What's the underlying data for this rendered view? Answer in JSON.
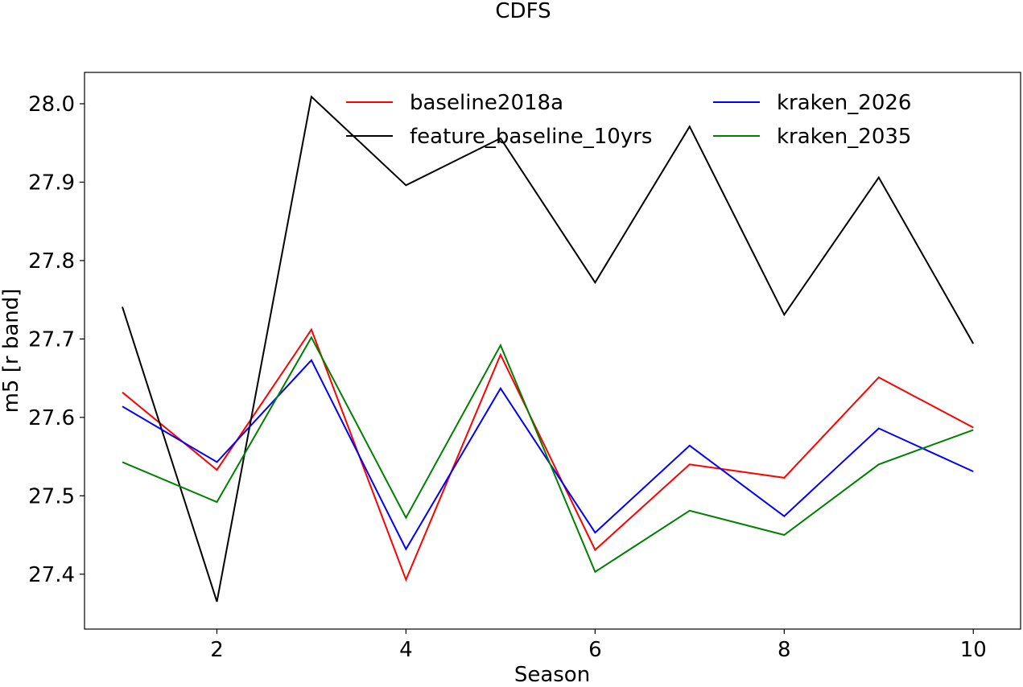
{
  "chart_data": {
    "type": "line",
    "title": "CDFS",
    "xlabel": "Season",
    "ylabel": "m5 [r band]",
    "xlim": [
      0.6,
      10.5
    ],
    "ylim": [
      27.33,
      28.04
    ],
    "x_ticks": [
      2,
      4,
      6,
      8,
      10
    ],
    "y_ticks": [
      27.4,
      27.5,
      27.6,
      27.7,
      27.8,
      27.9,
      28.0
    ],
    "x_tick_labels": [
      "2",
      "4",
      "6",
      "8",
      "10"
    ],
    "y_tick_labels": [
      "27.4",
      "27.5",
      "27.6",
      "27.7",
      "27.8",
      "27.9",
      "28.0"
    ],
    "legend_position": "top-center",
    "grid": false,
    "x": [
      1,
      2,
      3,
      4,
      5,
      6,
      7,
      8,
      9,
      10
    ],
    "series": [
      {
        "name": "baseline2018a",
        "color": "#ff0000",
        "values": [
          27.632,
          27.533,
          27.712,
          27.393,
          27.68,
          27.431,
          27.54,
          27.523,
          27.651,
          27.587
        ]
      },
      {
        "name": "feature_baseline_10yrs",
        "color": "#000000",
        "values": [
          27.741,
          27.365,
          28.009,
          27.896,
          27.956,
          27.772,
          27.971,
          27.731,
          27.906,
          27.694
        ]
      },
      {
        "name": "kraken_2026",
        "color": "#0000ff",
        "values": [
          27.614,
          27.543,
          27.673,
          27.432,
          27.637,
          27.453,
          27.564,
          27.474,
          27.586,
          27.531
        ]
      },
      {
        "name": "kraken_2035",
        "color": "#008000",
        "values": [
          27.543,
          27.492,
          27.702,
          27.472,
          27.692,
          27.403,
          27.481,
          27.45,
          27.54,
          27.584
        ]
      }
    ]
  }
}
